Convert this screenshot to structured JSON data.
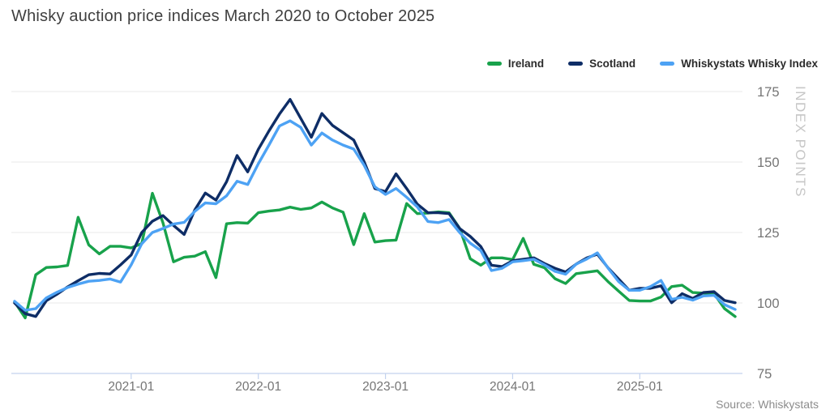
{
  "title": "Whisky auction price indices March 2020 to October 2025",
  "source": "Source: Whiskystats",
  "y_axis": {
    "label": "INDEX POINTS",
    "ticks": [
      75,
      100,
      125,
      150,
      175
    ]
  },
  "x_axis": {
    "tick_labels": [
      "2021-01",
      "2022-01",
      "2023-01",
      "2024-01",
      "2025-01"
    ]
  },
  "legend": [
    {
      "label": "Ireland",
      "color": "#18a24b"
    },
    {
      "label": "Scotland",
      "color": "#0e2d66"
    },
    {
      "label": "Whiskystats Whisky Index",
      "color": "#4da2f4"
    }
  ],
  "colors": {
    "grid": "#e9e9e9",
    "axis_line": "#c3d2ee",
    "tick_text": "#757575"
  },
  "chart_data": {
    "type": "line",
    "title": "Whisky auction price indices March 2020 to October 2025",
    "xlabel": "",
    "ylabel": "INDEX POINTS",
    "ylim": [
      75,
      175
    ],
    "grid": true,
    "legend_position": "top-right",
    "x": [
      "2020-02",
      "2020-03",
      "2020-04",
      "2020-05",
      "2020-06",
      "2020-07",
      "2020-08",
      "2020-09",
      "2020-10",
      "2020-11",
      "2020-12",
      "2021-01",
      "2021-02",
      "2021-03",
      "2021-04",
      "2021-05",
      "2021-06",
      "2021-07",
      "2021-08",
      "2021-09",
      "2021-10",
      "2021-11",
      "2021-12",
      "2022-01",
      "2022-02",
      "2022-03",
      "2022-04",
      "2022-05",
      "2022-06",
      "2022-07",
      "2022-08",
      "2022-09",
      "2022-10",
      "2022-11",
      "2022-12",
      "2023-01",
      "2023-02",
      "2023-03",
      "2023-04",
      "2023-05",
      "2023-06",
      "2023-07",
      "2023-08",
      "2023-09",
      "2023-10",
      "2023-11",
      "2023-12",
      "2024-01",
      "2024-02",
      "2024-03",
      "2024-04",
      "2024-05",
      "2024-06",
      "2024-07",
      "2024-08",
      "2024-09",
      "2024-10",
      "2024-11",
      "2024-12",
      "2025-01",
      "2025-02",
      "2025-03",
      "2025-04",
      "2025-05",
      "2025-06",
      "2025-07",
      "2025-08",
      "2025-09",
      "2025-10"
    ],
    "series": [
      {
        "name": "Ireland",
        "color": "#18a24b",
        "values": [
          100.4,
          94.7,
          110.0,
          112.6,
          112.8,
          113.3,
          130.4,
          120.6,
          117.4,
          120.1,
          120.1,
          119.5,
          121.1,
          138.9,
          128.5,
          114.6,
          116.2,
          116.6,
          118.2,
          109.0,
          128.1,
          128.5,
          128.3,
          132.0,
          132.6,
          133.0,
          134.0,
          133.2,
          133.7,
          135.8,
          133.7,
          132.2,
          120.7,
          131.7,
          121.6,
          122.1,
          122.3,
          135.3,
          131.7,
          131.9,
          132.3,
          132.0,
          126.5,
          115.7,
          113.4,
          116.0,
          116.0,
          115.4,
          122.9,
          113.7,
          112.5,
          108.6,
          106.9,
          110.4,
          110.9,
          111.4,
          107.6,
          104.2,
          100.9,
          100.7,
          100.7,
          102.1,
          105.8,
          106.3,
          103.7,
          103.5,
          103.3,
          98.0,
          95.2
        ]
      },
      {
        "name": "Scotland",
        "color": "#0e2d66",
        "values": [
          100.0,
          96.2,
          95.2,
          100.8,
          103.1,
          105.7,
          107.9,
          110.0,
          110.5,
          110.3,
          113.5,
          117.0,
          125.0,
          129.0,
          131.0,
          127.5,
          124.3,
          133.0,
          139.0,
          136.5,
          143.0,
          152.3,
          146.5,
          154.5,
          161.0,
          167.0,
          172.2,
          165.5,
          158.8,
          167.2,
          163.0,
          160.4,
          157.8,
          150.0,
          140.6,
          139.5,
          145.8,
          140.6,
          135.1,
          132.0,
          132.0,
          131.7,
          126.4,
          123.6,
          120.0,
          113.4,
          112.9,
          115.0,
          115.5,
          116.0,
          114.0,
          112.3,
          111.0,
          113.8,
          116.0,
          117.3,
          112.5,
          108.5,
          104.5,
          105.2,
          105.2,
          106.1,
          100.1,
          103.3,
          101.6,
          103.7,
          104.0,
          100.9,
          100.1
        ]
      },
      {
        "name": "Whiskystats Whisky Index",
        "color": "#4da2f4",
        "values": [
          100.6,
          97.4,
          98.0,
          101.8,
          103.8,
          105.5,
          106.7,
          107.7,
          108.0,
          108.5,
          107.4,
          113.5,
          121.0,
          125.0,
          126.4,
          128.0,
          128.6,
          132.5,
          135.5,
          135.2,
          138.0,
          143.2,
          142.0,
          149.4,
          156.0,
          162.8,
          164.6,
          162.3,
          156.0,
          160.3,
          157.8,
          156.0,
          154.6,
          148.8,
          141.2,
          138.5,
          140.6,
          137.5,
          134.1,
          128.9,
          128.5,
          129.6,
          125.0,
          121.2,
          118.6,
          111.5,
          112.3,
          114.6,
          115.0,
          115.5,
          113.5,
          111.2,
          110.2,
          113.8,
          115.6,
          117.8,
          112.4,
          107.6,
          104.5,
          104.5,
          105.8,
          108.0,
          101.3,
          102.0,
          101.0,
          102.5,
          102.7,
          99.4,
          97.7
        ]
      }
    ]
  }
}
